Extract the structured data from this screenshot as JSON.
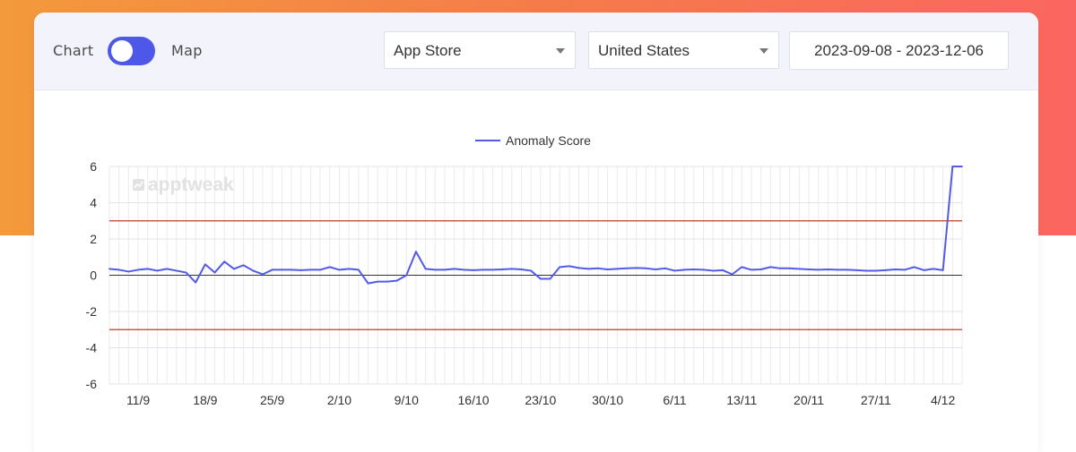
{
  "toolbar": {
    "toggle_left_label": "Chart",
    "toggle_right_label": "Map",
    "toggle_state": "Chart",
    "store_select": "App Store",
    "country_select": "United States",
    "date_range": "2023-09-08 - 2023-12-06"
  },
  "watermark": "apptweak",
  "colors": {
    "series": "#525be8",
    "threshold": "#c0392b",
    "toggle": "#4d57e8",
    "gradient_start": "#f39a3c",
    "gradient_end": "#fb6660"
  },
  "chart_data": {
    "type": "line",
    "title": "",
    "xlabel": "",
    "ylabel": "",
    "legend": "top-center",
    "grid": true,
    "ylim": [
      -6,
      6
    ],
    "y_ticks": [
      6,
      4,
      2,
      0,
      -2,
      -4,
      -6
    ],
    "x_start": "2023-09-08",
    "x_tick_labels": [
      "11/9",
      "18/9",
      "25/9",
      "2/10",
      "9/10",
      "16/10",
      "23/10",
      "30/10",
      "6/11",
      "13/11",
      "20/11",
      "27/11",
      "4/12"
    ],
    "threshold_upper": 3,
    "threshold_lower": -3,
    "series": [
      {
        "name": "Anomaly Score",
        "values": [
          0.35,
          0.3,
          0.2,
          0.3,
          0.35,
          0.25,
          0.35,
          0.25,
          0.15,
          -0.4,
          0.6,
          0.15,
          0.75,
          0.35,
          0.55,
          0.25,
          0.05,
          0.3,
          0.3,
          0.3,
          0.28,
          0.3,
          0.3,
          0.45,
          0.3,
          0.35,
          0.3,
          -0.45,
          -0.35,
          -0.35,
          -0.3,
          0.0,
          1.3,
          0.35,
          0.3,
          0.3,
          0.35,
          0.3,
          0.28,
          0.3,
          0.3,
          0.32,
          0.35,
          0.32,
          0.25,
          -0.2,
          -0.2,
          0.45,
          0.5,
          0.4,
          0.35,
          0.38,
          0.32,
          0.35,
          0.38,
          0.4,
          0.38,
          0.32,
          0.38,
          0.25,
          0.3,
          0.32,
          0.3,
          0.25,
          0.28,
          0.05,
          0.45,
          0.3,
          0.32,
          0.45,
          0.38,
          0.38,
          0.35,
          0.32,
          0.3,
          0.32,
          0.3,
          0.3,
          0.28,
          0.25,
          0.25,
          0.28,
          0.32,
          0.3,
          0.45,
          0.28,
          0.35,
          0.28,
          6.0,
          6.0
        ]
      }
    ]
  }
}
